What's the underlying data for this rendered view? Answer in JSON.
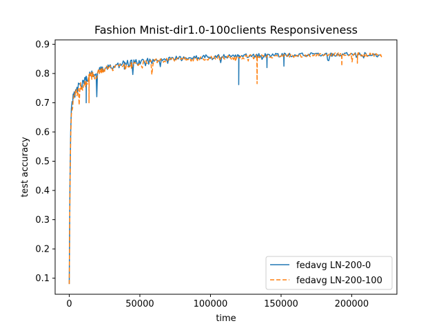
{
  "chart_data": {
    "type": "line",
    "title": "Fashion Mnist-dir1.0-100clients Responsiveness",
    "xlabel": "time",
    "ylabel": "test accuracy",
    "xlim": [
      -10000,
      232000
    ],
    "ylim": [
      0.045,
      0.915
    ],
    "xticks": [
      0,
      50000,
      100000,
      150000,
      200000
    ],
    "xtick_labels": [
      "0",
      "50000",
      "100000",
      "150000",
      "200000"
    ],
    "yticks": [
      0.1,
      0.2,
      0.3,
      0.4,
      0.5,
      0.6,
      0.7,
      0.8,
      0.9
    ],
    "ytick_labels": [
      "0.1",
      "0.2",
      "0.3",
      "0.4",
      "0.5",
      "0.6",
      "0.7",
      "0.8",
      "0.9"
    ],
    "grid": false,
    "legend_position": "lower-right",
    "series": [
      {
        "name": "fedavg LN-200-0",
        "color": "#1f77b4",
        "style": "solid",
        "x": [
          0,
          500,
          1000,
          1500,
          2000,
          3000,
          4000,
          5000,
          7000,
          9000,
          11000,
          13000,
          15000,
          20000,
          25000,
          30000,
          40000,
          50000,
          60000,
          70000,
          80000,
          90000,
          100000,
          110000,
          120000,
          130000,
          140000,
          150000,
          160000,
          170000,
          180000,
          190000,
          200000,
          210000,
          220000
        ],
        "y": [
          0.08,
          0.42,
          0.6,
          0.68,
          0.72,
          0.74,
          0.75,
          0.76,
          0.77,
          0.78,
          0.79,
          0.8,
          0.81,
          0.82,
          0.83,
          0.835,
          0.845,
          0.85,
          0.855,
          0.858,
          0.86,
          0.862,
          0.865,
          0.866,
          0.867,
          0.868,
          0.869,
          0.87,
          0.87,
          0.871,
          0.872,
          0.872,
          0.873,
          0.872,
          0.87
        ]
      },
      {
        "name": "fedavg LN-200-100",
        "color": "#ff7f0e",
        "style": "dashed",
        "x": [
          0,
          500,
          1000,
          1500,
          2000,
          3000,
          4000,
          5000,
          7000,
          9000,
          11000,
          13000,
          15000,
          20000,
          25000,
          30000,
          40000,
          50000,
          60000,
          70000,
          80000,
          90000,
          100000,
          110000,
          120000,
          130000,
          140000,
          150000,
          160000,
          170000,
          180000,
          190000,
          200000,
          210000,
          222000
        ],
        "y": [
          0.08,
          0.4,
          0.58,
          0.66,
          0.7,
          0.73,
          0.745,
          0.755,
          0.765,
          0.775,
          0.785,
          0.795,
          0.805,
          0.815,
          0.825,
          0.83,
          0.84,
          0.845,
          0.85,
          0.853,
          0.855,
          0.857,
          0.86,
          0.861,
          0.862,
          0.864,
          0.866,
          0.867,
          0.868,
          0.869,
          0.87,
          0.871,
          0.872,
          0.871,
          0.868
        ]
      }
    ],
    "dips": [
      {
        "series": 0,
        "x": 120000,
        "y": 0.762
      },
      {
        "series": 1,
        "x": 133000,
        "y": 0.765
      },
      {
        "series": 0,
        "x": 12000,
        "y": 0.7
      },
      {
        "series": 1,
        "x": 14000,
        "y": 0.7
      },
      {
        "series": 0,
        "x": 39000,
        "y": 0.815
      },
      {
        "series": 1,
        "x": 44000,
        "y": 0.818
      },
      {
        "series": 0,
        "x": 140000,
        "y": 0.82
      },
      {
        "series": 0,
        "x": 152000,
        "y": 0.825
      },
      {
        "series": 1,
        "x": 193000,
        "y": 0.825
      },
      {
        "series": 1,
        "x": 204000,
        "y": 0.835
      }
    ]
  }
}
